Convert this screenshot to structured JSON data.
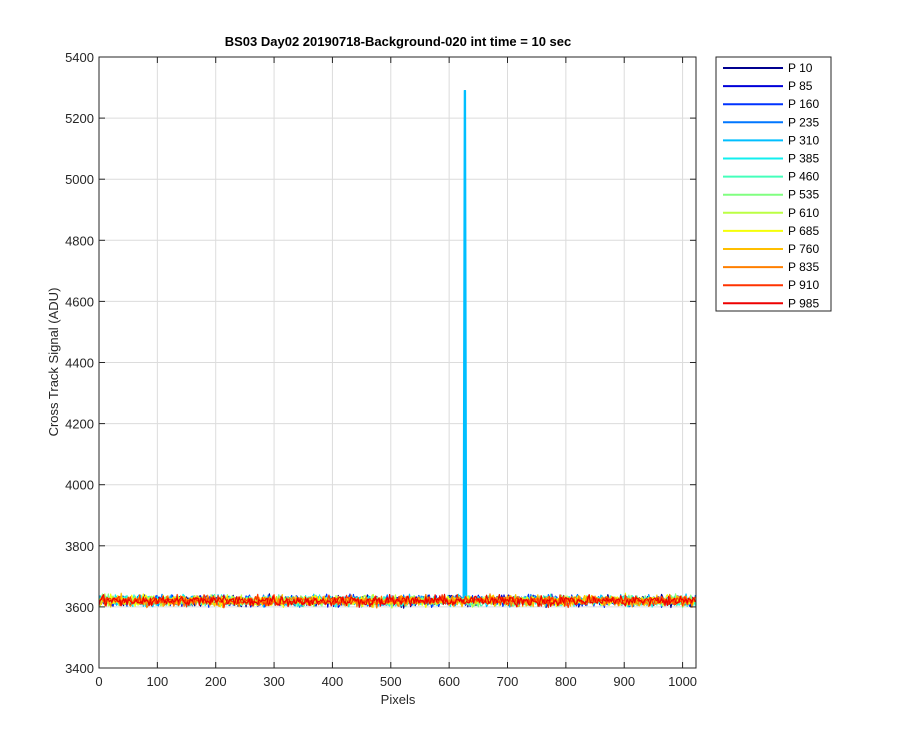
{
  "chart_data": {
    "type": "line",
    "title": "BS03 Day02 20190718-Background-020 int time = 10 sec",
    "xlabel": "Pixels",
    "ylabel": "Cross Track Signal (ADU)",
    "xlim": [
      0,
      1023
    ],
    "ylim": [
      3400,
      5400
    ],
    "xticks": [
      0,
      100,
      200,
      300,
      400,
      500,
      600,
      700,
      800,
      900,
      1000
    ],
    "yticks": [
      3400,
      3600,
      3800,
      4000,
      4200,
      4400,
      4600,
      4800,
      5000,
      5200,
      5400
    ],
    "grid": true,
    "legend_position": "outside-top-right",
    "baseline_mean": 3620,
    "baseline_noise_range": [
      3590,
      3650
    ],
    "series": [
      {
        "name": "P 10",
        "color": "#00008f"
      },
      {
        "name": "P 85",
        "color": "#0000d9"
      },
      {
        "name": "P 160",
        "color": "#0033ff"
      },
      {
        "name": "P 235",
        "color": "#0077ff"
      },
      {
        "name": "P 310",
        "color": "#00bfff",
        "spike": {
          "x": 627,
          "y": 5290
        }
      },
      {
        "name": "P 385",
        "color": "#11efef"
      },
      {
        "name": "P 460",
        "color": "#44ffbb"
      },
      {
        "name": "P 535",
        "color": "#80ff80"
      },
      {
        "name": "P 610",
        "color": "#bbff44"
      },
      {
        "name": "P 685",
        "color": "#f5ff0a"
      },
      {
        "name": "P 760",
        "color": "#ffbf00"
      },
      {
        "name": "P 835",
        "color": "#ff7f00"
      },
      {
        "name": "P 910",
        "color": "#ff3300"
      },
      {
        "name": "P 985",
        "color": "#ee0000"
      }
    ]
  }
}
